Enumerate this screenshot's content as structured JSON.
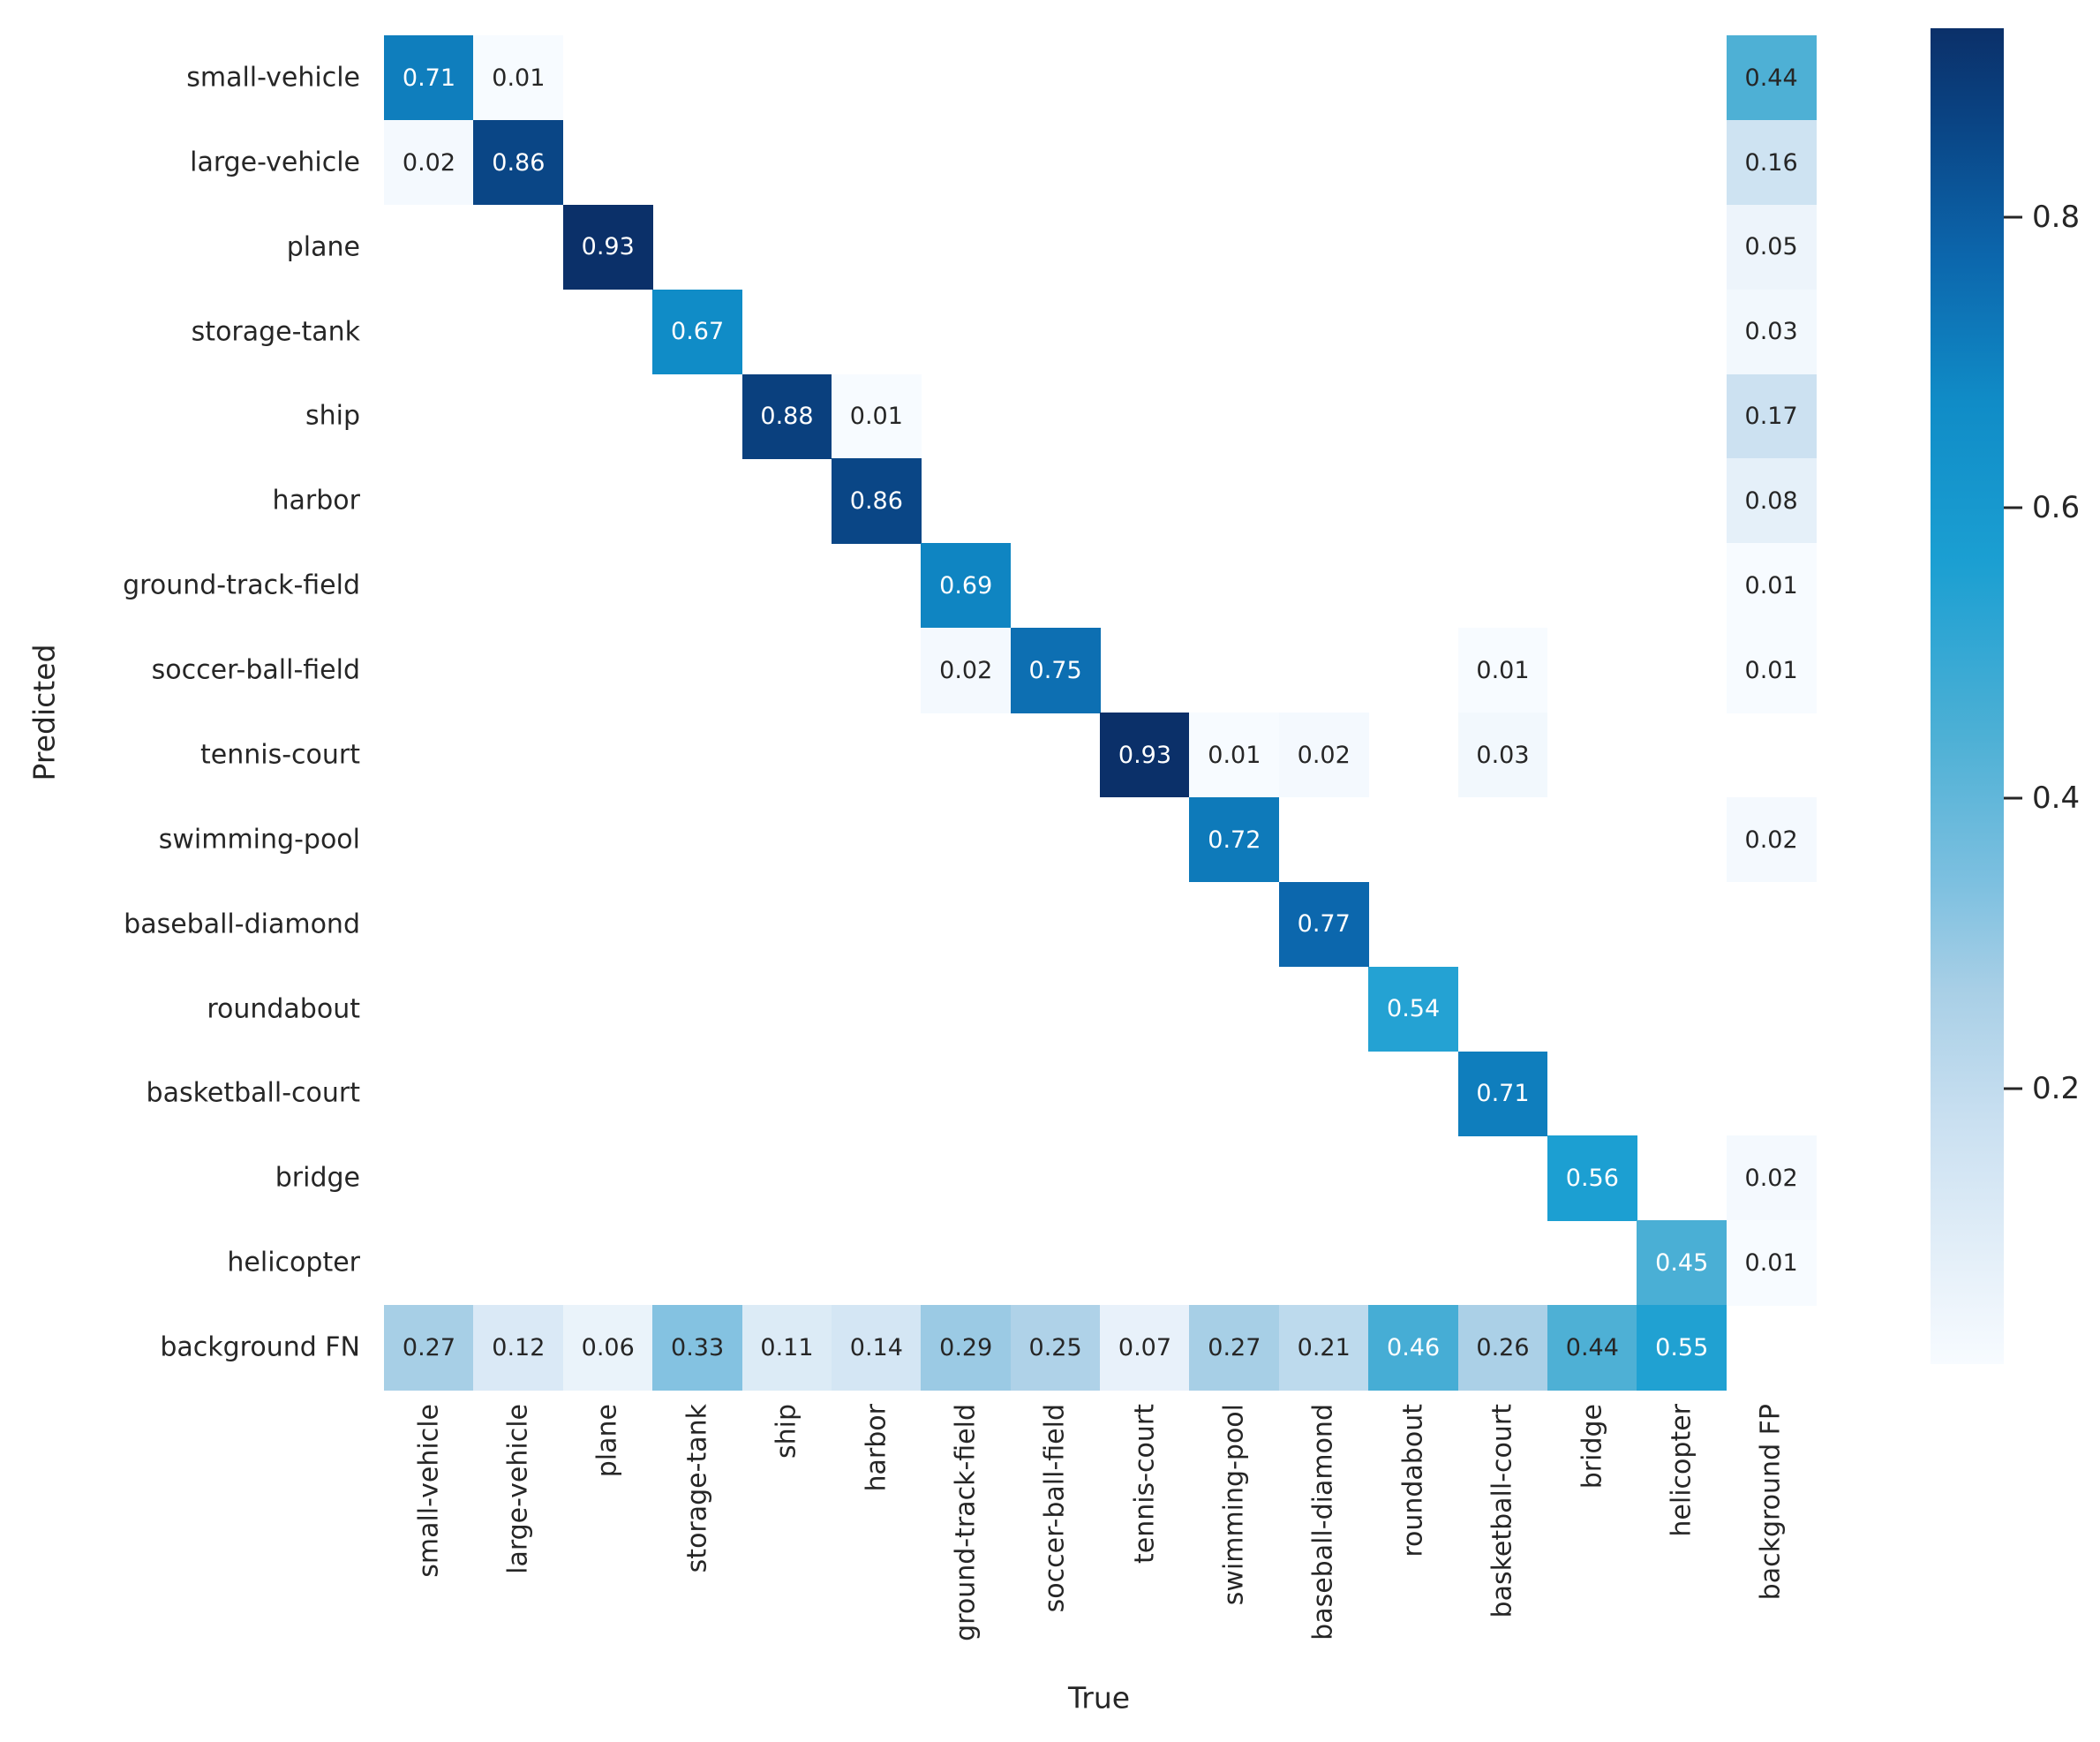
{
  "figure": {
    "background": "#ffffff",
    "text_color": "#262626",
    "annotation_dark_color": "#262626",
    "annotation_light_color": "#ffffff"
  },
  "chart_data": {
    "type": "heatmap",
    "title": "",
    "xlabel": "True",
    "ylabel": "Predicted",
    "x_categories": [
      "small-vehicle",
      "large-vehicle",
      "plane",
      "storage-tank",
      "ship",
      "harbor",
      "ground-track-field",
      "soccer-ball-field",
      "tennis-court",
      "swimming-pool",
      "baseball-diamond",
      "roundabout",
      "basketball-court",
      "bridge",
      "helicopter",
      "background FP"
    ],
    "y_categories": [
      "small-vehicle",
      "large-vehicle",
      "plane",
      "storage-tank",
      "ship",
      "harbor",
      "ground-track-field",
      "soccer-ball-field",
      "tennis-court",
      "swimming-pool",
      "baseball-diamond",
      "roundabout",
      "basketball-court",
      "bridge",
      "helicopter",
      "background FN"
    ],
    "matrix": [
      [
        0.71,
        0.01,
        null,
        null,
        null,
        null,
        null,
        null,
        null,
        null,
        null,
        null,
        null,
        null,
        null,
        0.44
      ],
      [
        0.02,
        0.86,
        null,
        null,
        null,
        null,
        null,
        null,
        null,
        null,
        null,
        null,
        null,
        null,
        null,
        0.16
      ],
      [
        null,
        null,
        0.93,
        null,
        null,
        null,
        null,
        null,
        null,
        null,
        null,
        null,
        null,
        null,
        null,
        0.05
      ],
      [
        null,
        null,
        null,
        0.67,
        null,
        null,
        null,
        null,
        null,
        null,
        null,
        null,
        null,
        null,
        null,
        0.03
      ],
      [
        null,
        null,
        null,
        null,
        0.88,
        0.01,
        null,
        null,
        null,
        null,
        null,
        null,
        null,
        null,
        null,
        0.17
      ],
      [
        null,
        null,
        null,
        null,
        null,
        0.86,
        null,
        null,
        null,
        null,
        null,
        null,
        null,
        null,
        null,
        0.08
      ],
      [
        null,
        null,
        null,
        null,
        null,
        null,
        0.69,
        null,
        null,
        null,
        null,
        null,
        null,
        null,
        null,
        0.01
      ],
      [
        null,
        null,
        null,
        null,
        null,
        null,
        0.02,
        0.75,
        null,
        null,
        null,
        null,
        0.01,
        null,
        null,
        0.01
      ],
      [
        null,
        null,
        null,
        null,
        null,
        null,
        null,
        null,
        0.93,
        0.01,
        0.02,
        null,
        0.03,
        null,
        null,
        null
      ],
      [
        null,
        null,
        null,
        null,
        null,
        null,
        null,
        null,
        null,
        0.72,
        null,
        null,
        null,
        null,
        null,
        0.02
      ],
      [
        null,
        null,
        null,
        null,
        null,
        null,
        null,
        null,
        null,
        null,
        0.77,
        null,
        null,
        null,
        null,
        null
      ],
      [
        null,
        null,
        null,
        null,
        null,
        null,
        null,
        null,
        null,
        null,
        null,
        0.54,
        null,
        null,
        null,
        null
      ],
      [
        null,
        null,
        null,
        null,
        null,
        null,
        null,
        null,
        null,
        null,
        null,
        null,
        0.71,
        null,
        null,
        null
      ],
      [
        null,
        null,
        null,
        null,
        null,
        null,
        null,
        null,
        null,
        null,
        null,
        null,
        null,
        0.56,
        null,
        0.02
      ],
      [
        null,
        null,
        null,
        null,
        null,
        null,
        null,
        null,
        null,
        null,
        null,
        null,
        null,
        null,
        0.45,
        0.01
      ],
      [
        0.27,
        0.12,
        0.06,
        0.33,
        0.11,
        0.14,
        0.29,
        0.25,
        0.07,
        0.27,
        0.21,
        0.46,
        0.26,
        0.44,
        0.55,
        null
      ]
    ],
    "vmin": 0.01,
    "vmax": 0.93,
    "white_text_above": 0.445,
    "colormap_name": "Blues",
    "colormap_anchors": [
      [
        0.0,
        "#f7fbff"
      ],
      [
        0.06,
        "#e9f2fa"
      ],
      [
        0.18,
        "#cae0f1"
      ],
      [
        0.28,
        "#a8cfe6"
      ],
      [
        0.36,
        "#7dc0e0"
      ],
      [
        0.47,
        "#4db0d5"
      ],
      [
        0.6,
        "#1b9fd2"
      ],
      [
        0.72,
        "#108cc7"
      ],
      [
        0.83,
        "#0c66ac"
      ],
      [
        0.93,
        "#0a4484"
      ],
      [
        1.0,
        "#0b3069"
      ]
    ],
    "colorbar": {
      "position": "right",
      "ticks": [
        "0.2",
        "0.4",
        "0.6",
        "0.8"
      ]
    },
    "grid_lines": false,
    "legend": null
  }
}
